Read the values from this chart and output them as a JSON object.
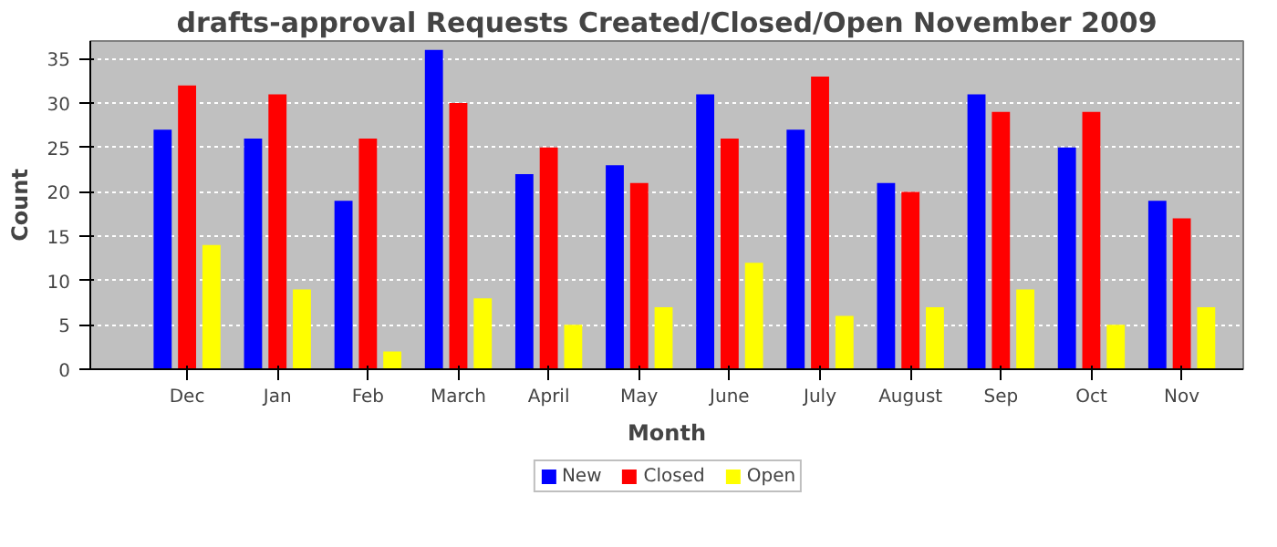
{
  "chart_data": {
    "type": "bar",
    "title": "drafts-approval Requests Created/Closed/Open November 2009",
    "xlabel": "Month",
    "ylabel": "Count",
    "categories": [
      "Dec",
      "Jan",
      "Feb",
      "March",
      "April",
      "May",
      "June",
      "July",
      "August",
      "Sep",
      "Oct",
      "Nov"
    ],
    "series": [
      {
        "name": "New",
        "color": "#0000ff",
        "values": [
          27,
          26,
          19,
          36,
          22,
          23,
          31,
          27,
          21,
          31,
          25,
          19
        ]
      },
      {
        "name": "Closed",
        "color": "#ff0000",
        "values": [
          32,
          31,
          26,
          30,
          25,
          21,
          26,
          33,
          20,
          29,
          29,
          17
        ]
      },
      {
        "name": "Open",
        "color": "#ffff00",
        "values": [
          14,
          9,
          2,
          8,
          5,
          7,
          12,
          6,
          7,
          9,
          5,
          7
        ]
      }
    ],
    "ylim": [
      0,
      37
    ],
    "yticks": [
      0,
      5,
      10,
      15,
      20,
      25,
      30,
      35
    ],
    "grid": "y",
    "legend": "bottom"
  }
}
